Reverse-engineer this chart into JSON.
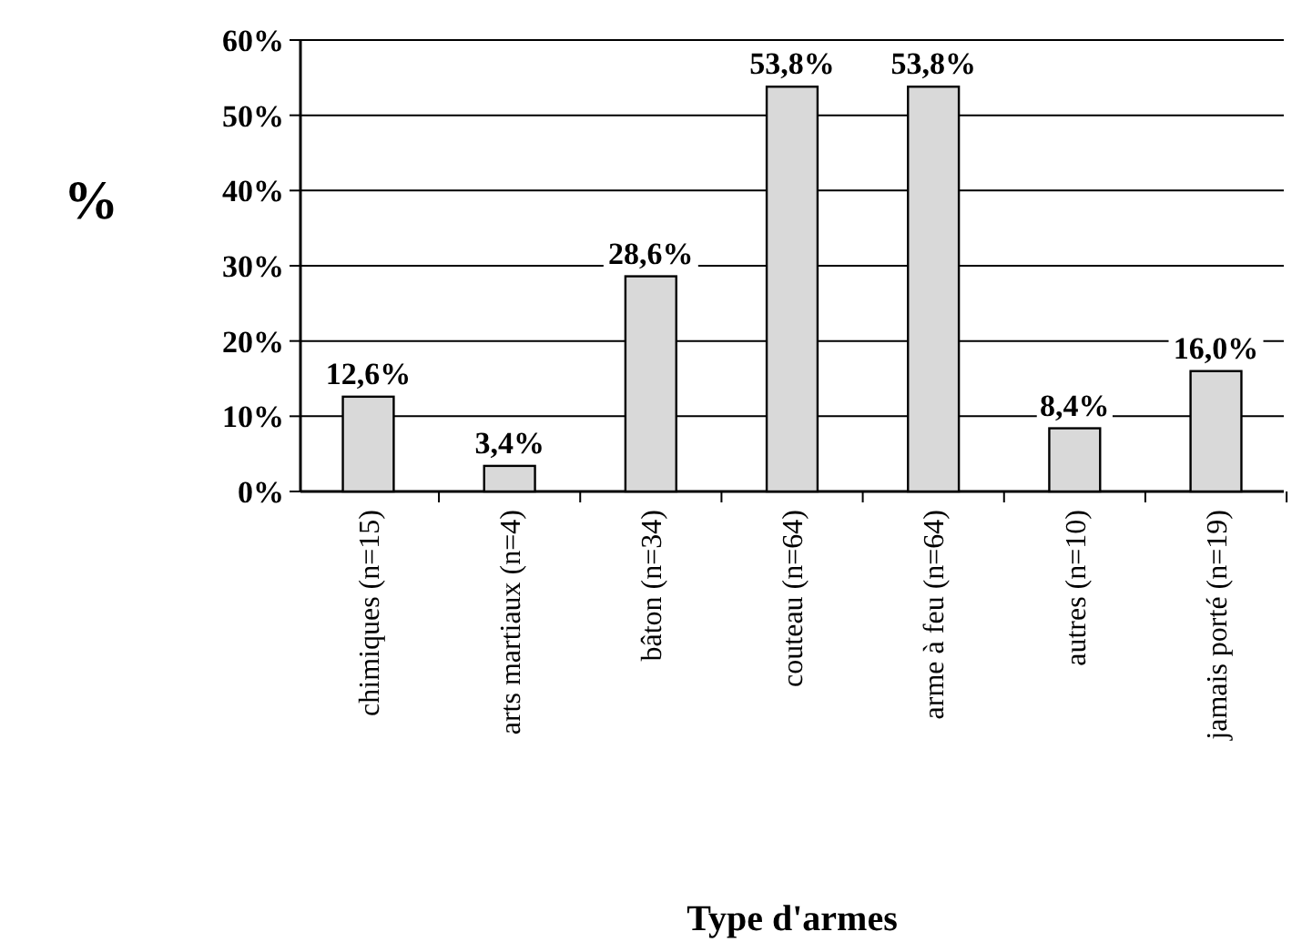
{
  "chart_data": {
    "type": "bar",
    "xlabel": "Type d'armes",
    "ylabel": "%",
    "categories": [
      "chimiques (n=15)",
      "arts martiaux (n=4)",
      "bâton (n=34)",
      "couteau (n=64)",
      "arme à feu (n=64)",
      "autres (n=10)",
      "jamais porté (n=19)"
    ],
    "values": [
      12.6,
      3.4,
      28.6,
      53.8,
      53.8,
      8.4,
      16.0
    ],
    "value_labels": [
      "12,6%",
      "3,4%",
      "28,6%",
      "53,8%",
      "53,8%",
      "8,4%",
      "16,0%"
    ],
    "color": "#d9d9d9",
    "ylim": [
      0,
      60
    ],
    "yticks": [
      {
        "value": 0,
        "label": "0%"
      },
      {
        "value": 10,
        "label": "10%"
      },
      {
        "value": 20,
        "label": "20%"
      },
      {
        "value": 30,
        "label": "30%"
      },
      {
        "value": 40,
        "label": "40%"
      },
      {
        "value": 50,
        "label": "50%"
      },
      {
        "value": 60,
        "label": "60%"
      }
    ],
    "grid": "y"
  }
}
